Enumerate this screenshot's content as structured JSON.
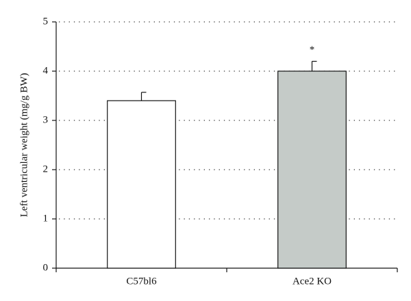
{
  "chart_data": {
    "type": "bar",
    "y_label": "Left ventricular weight (mg/g BW)",
    "categories": [
      "C57bl6",
      "Ace2 KO"
    ],
    "values": [
      3.4,
      4.0
    ],
    "errors": [
      0.17,
      0.2
    ],
    "colors": [
      "#ffffff",
      "#c5cbc8"
    ],
    "annotations": [
      null,
      "*"
    ],
    "ylim": [
      0,
      5
    ],
    "yticks": [
      0,
      1,
      2,
      3,
      4,
      5
    ],
    "grid": true
  }
}
